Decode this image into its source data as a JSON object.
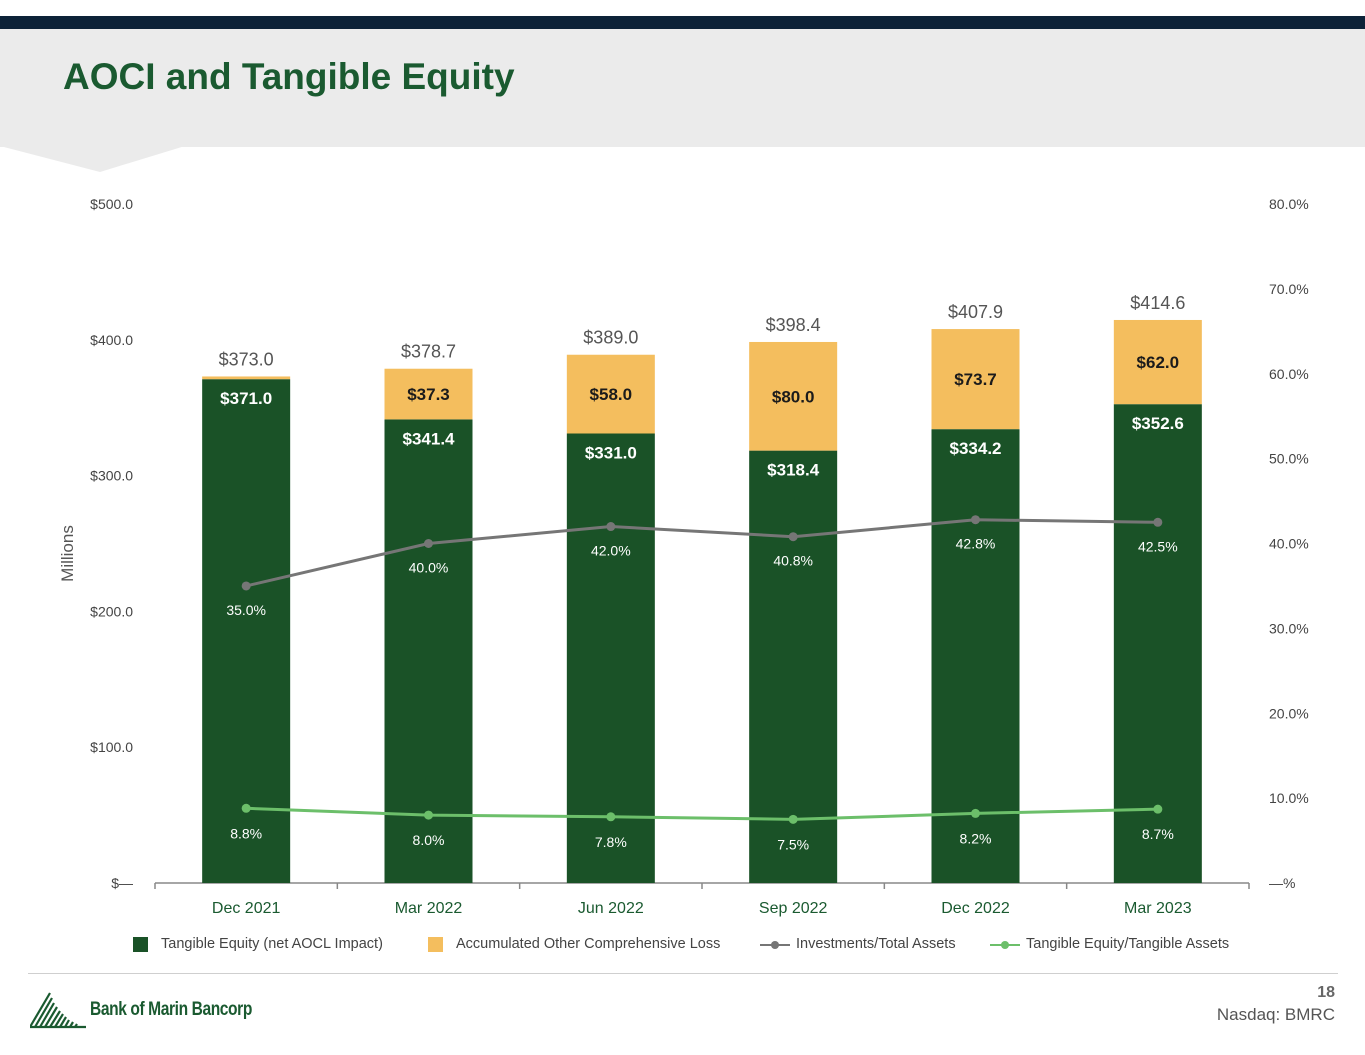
{
  "title": "AOCI and Tangible Equity",
  "colors": {
    "equity": "#1a5227",
    "aocl": "#f4be5e",
    "investments": "#767676",
    "te_ratio": "#6cbf6a",
    "title": "#1a5a30"
  },
  "chart_data": {
    "type": "bar",
    "stacked": true,
    "categories": [
      "Dec 2021",
      "Mar 2022",
      "Jun 2022",
      "Sep 2022",
      "Dec 2022",
      "Mar 2023"
    ],
    "ylabel": "Millions",
    "ylim": [
      0,
      500
    ],
    "y_ticks": [
      "$—",
      "$100.0",
      "$200.0",
      "$300.0",
      "$400.0",
      "$500.0"
    ],
    "y2lim": [
      0,
      80
    ],
    "y2_ticks": [
      "—%",
      "10.0%",
      "20.0%",
      "30.0%",
      "40.0%",
      "50.0%",
      "60.0%",
      "70.0%",
      "80.0%"
    ],
    "series": [
      {
        "name": "Tangible Equity (net AOCL Impact)",
        "kind": "bar",
        "values": [
          371.0,
          341.4,
          331.0,
          318.4,
          334.2,
          352.6
        ],
        "labels": [
          "$371.0",
          "$341.4",
          "$331.0",
          "$318.4",
          "$334.2",
          "$352.6"
        ]
      },
      {
        "name": "Accumulated Other Comprehensive Loss",
        "kind": "bar",
        "values": [
          2.0,
          37.3,
          58.0,
          80.0,
          73.7,
          62.0
        ],
        "labels": [
          "",
          "$37.3",
          "$58.0",
          "$80.0",
          "$73.7",
          "$62.0"
        ]
      },
      {
        "name": "Investments/Total Assets",
        "kind": "line",
        "axis": "right",
        "values": [
          35.0,
          40.0,
          42.0,
          40.8,
          42.8,
          42.5
        ],
        "labels": [
          "35.0%",
          "40.0%",
          "42.0%",
          "40.8%",
          "42.8%",
          "42.5%"
        ]
      },
      {
        "name": "Tangible Equity/Tangible Assets",
        "kind": "line",
        "axis": "right",
        "values": [
          8.8,
          8.0,
          7.8,
          7.5,
          8.2,
          8.7
        ],
        "labels": [
          "8.8%",
          "8.0%",
          "7.8%",
          "7.5%",
          "8.2%",
          "8.7%"
        ]
      }
    ],
    "totals": [
      373.0,
      378.7,
      389.0,
      398.4,
      407.9,
      414.6
    ],
    "total_labels": [
      "$373.0",
      "$378.7",
      "$389.0",
      "$398.4",
      "$407.9",
      "$414.6"
    ]
  },
  "legend": {
    "equity": "Tangible Equity (net AOCL Impact)",
    "aocl": "Accumulated Other Comprehensive Loss",
    "investments": "Investments/Total Assets",
    "te_ratio": "Tangible Equity/Tangible Assets"
  },
  "footer": {
    "logo_text": "Bank of Marin Bancorp",
    "page_number": "18",
    "ticker": "Nasdaq: BMRC"
  }
}
